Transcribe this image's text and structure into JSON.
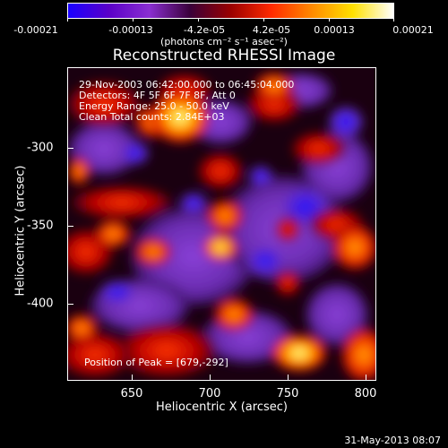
{
  "colorbar": {
    "colors": [
      "#1a00ff",
      "#5a00c8",
      "#8a2fd0",
      "#3a003a",
      "#9a0000",
      "#ff2a00",
      "#ff8a00",
      "#ffe000",
      "#ffffff"
    ],
    "ticks": [
      "-0.00021",
      "-0.00013",
      "-4.2e-05",
      "4.2e-05",
      "0.00013",
      "0.00021"
    ],
    "units": "(photons cm⁻² s⁻¹ asec⁻²)"
  },
  "title": "Reconstructed RHESSI Image",
  "annotations": {
    "line1": "29-Nov-2003 06:42:00.000 to 06:45:04.000",
    "line2": "Detectors: 4F 5F 6F 7F 8F, Att 0",
    "line3": "Energy Range: 25.0 - 50.0 keV",
    "line4": "Clean    Total counts: 2.84E+03",
    "peak": "Position of Peak = [679,-292]"
  },
  "axes": {
    "x_ticks": [
      "650",
      "700",
      "750",
      "800"
    ],
    "y_ticks": [
      "-300",
      "-350",
      "-400"
    ],
    "x_label": "Heliocentric X (arcsec)",
    "y_label": "Heliocentric Y (arcsec)"
  },
  "footer": {
    "date": "31-May-2013 08:07"
  }
}
